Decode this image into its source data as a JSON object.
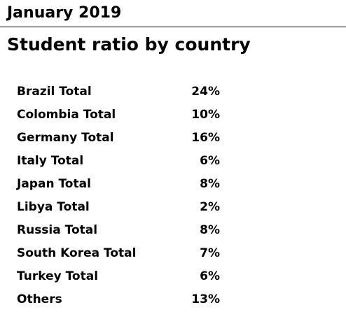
{
  "header": {
    "period": "January 2019",
    "title": "Student ratio by country"
  },
  "table": {
    "rows": [
      {
        "label": "Brazil Total",
        "value": "24%"
      },
      {
        "label": "Colombia Total",
        "value": "10%"
      },
      {
        "label": "Germany Total",
        "value": "16%"
      },
      {
        "label": "Italy Total",
        "value": "6%"
      },
      {
        "label": "Japan Total",
        "value": "8%"
      },
      {
        "label": "Libya Total",
        "value": "2%"
      },
      {
        "label": "Russia Total",
        "value": "8%"
      },
      {
        "label": "South Korea Total",
        "value": "7%"
      },
      {
        "label": "Turkey Total",
        "value": "6%"
      },
      {
        "label": "Others",
        "value": "13%"
      }
    ]
  }
}
